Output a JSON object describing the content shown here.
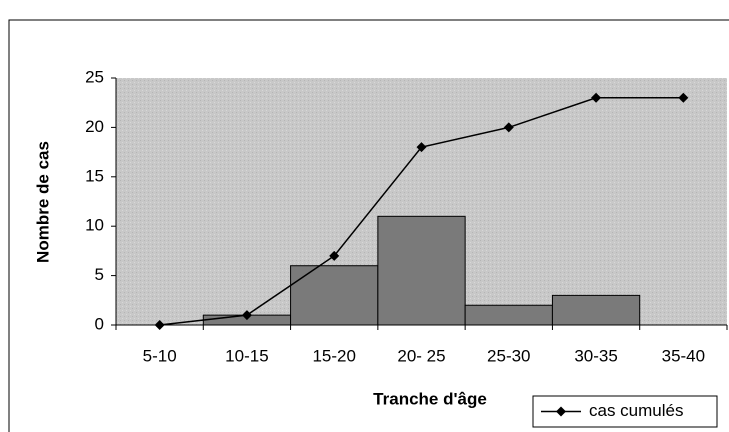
{
  "chart_data": {
    "type": "bar",
    "xlabel": "Tranche d'âge",
    "ylabel": "Nombre de cas",
    "categories": [
      "5-10",
      "10-15",
      "15-20",
      "20- 25",
      "25-30",
      "30-35",
      "35-40"
    ],
    "series": [
      {
        "type": "bar",
        "color": "#7a7a7a",
        "values": [
          0,
          1,
          6,
          11,
          2,
          3,
          0
        ]
      },
      {
        "type": "line",
        "name": "cas cumulés",
        "color": "#000000",
        "values": [
          0,
          1,
          7,
          18,
          20,
          23,
          23
        ]
      }
    ],
    "ylim": [
      0,
      25
    ],
    "yticks": [
      0,
      5,
      10,
      15,
      20,
      25
    ],
    "legend": "lower right"
  }
}
